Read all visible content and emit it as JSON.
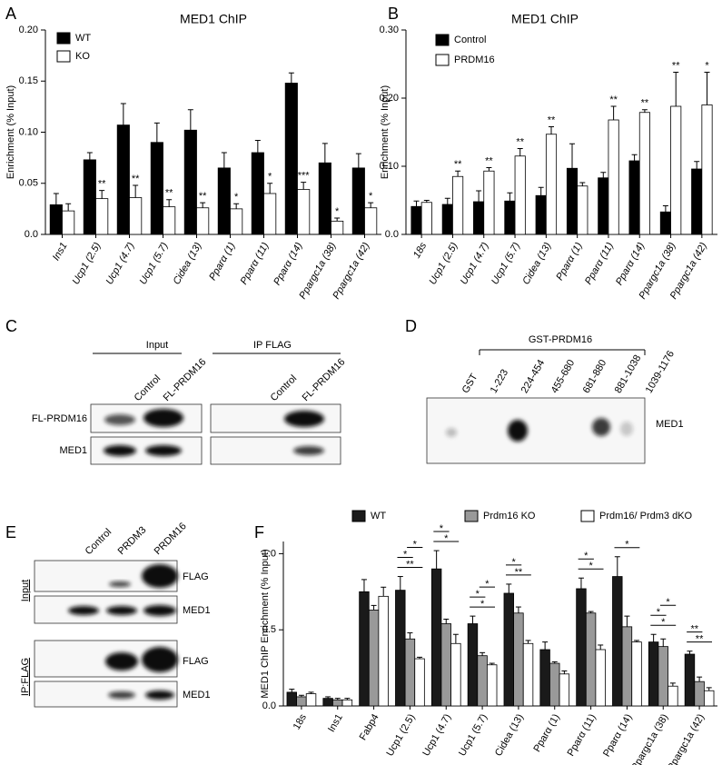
{
  "panel_labels": [
    "A",
    "B",
    "C",
    "D",
    "E",
    "F"
  ],
  "chart_data": [
    {
      "type": "bar",
      "title": "MED1 ChIP",
      "y_label": "Enrichment (% Input)",
      "categories": [
        "Ins1",
        "Ucp1 (2.5)",
        "Ucp1 (4.7)",
        "Ucp1 (5.7)",
        "Cidea (13)",
        "Pparα (1)",
        "Pparα (11)",
        "Pparα (14)",
        "Ppargc1a (38)",
        "Ppargc1a (42)"
      ],
      "series": [
        {
          "name": "WT",
          "color": "#000000",
          "values": [
            0.029,
            0.073,
            0.107,
            0.09,
            0.102,
            0.065,
            0.08,
            0.148,
            0.07,
            0.065
          ],
          "errors": [
            0.011,
            0.007,
            0.021,
            0.019,
            0.02,
            0.015,
            0.012,
            0.01,
            0.019,
            0.014
          ]
        },
        {
          "name": "KO",
          "color": "#ffffff",
          "values": [
            0.023,
            0.035,
            0.036,
            0.027,
            0.026,
            0.025,
            0.04,
            0.044,
            0.013,
            0.026
          ],
          "errors": [
            0.007,
            0.008,
            0.012,
            0.007,
            0.005,
            0.005,
            0.01,
            0.007,
            0.003,
            0.005
          ]
        }
      ],
      "significance": [
        null,
        "**",
        "**",
        "**",
        "**",
        "*",
        "*",
        "***",
        "*",
        "*"
      ],
      "ylim": [
        0,
        0.2
      ],
      "yticks": [
        {
          "value": 0,
          "label": "0.0"
        },
        0.05,
        {
          "value": 0.1,
          "label": "0.10"
        },
        0.15,
        {
          "value": 0.2,
          "label": "0.20"
        }
      ],
      "legend": "upper left"
    },
    {
      "type": "bar",
      "title": "MED1 ChIP",
      "y_label": "Enrichment (% Input)",
      "categories": [
        "18s",
        "Ucp1 (2.5)",
        "Ucp1 (4.7)",
        "Ucp1 (5.7)",
        "Cidea (13)",
        "Pparα (1)",
        "Pparα (11)",
        "Pparα (14)",
        "Ppargc1a (38)",
        "Ppargc1a (42)"
      ],
      "series": [
        {
          "name": "Control",
          "color": "#000000",
          "values": [
            0.041,
            0.044,
            0.048,
            0.049,
            0.057,
            0.097,
            0.083,
            0.108,
            0.033,
            0.096
          ],
          "errors": [
            0.008,
            0.009,
            0.016,
            0.012,
            0.012,
            0.036,
            0.008,
            0.009,
            0.009,
            0.011
          ]
        },
        {
          "name": "PRDM16",
          "color": "#ffffff",
          "values": [
            0.047,
            0.085,
            0.093,
            0.115,
            0.147,
            0.071,
            0.168,
            0.179,
            0.188,
            0.19
          ],
          "errors": [
            0.003,
            0.008,
            0.005,
            0.011,
            0.011,
            0.005,
            0.02,
            0.004,
            0.05,
            0.048
          ]
        }
      ],
      "significance": [
        null,
        "**",
        "**",
        "**",
        "**",
        null,
        "**",
        "**",
        "**",
        "*"
      ],
      "ylim": [
        0,
        0.3
      ],
      "yticks": [
        {
          "value": 0,
          "label": "0.0"
        },
        {
          "value": 0.1,
          "label": "0.10"
        },
        {
          "value": 0.2,
          "label": "0.20"
        },
        {
          "value": 0.3,
          "label": "0.30"
        }
      ],
      "legend": "upper left"
    },
    {
      "type": "bar",
      "y_label": "MED1 ChIP Enrichment (% Input)",
      "categories": [
        "18s",
        "Ins1",
        "Fabp4",
        "Ucp1 (2.5)",
        "Ucp1 (4.7)",
        "Ucp1 (5.7)",
        "Cidea (13)",
        "Pparα (1)",
        "Pparα (11)",
        "Pparα (14)",
        "Ppargc1a (38)",
        "Ppargc1a (42)"
      ],
      "series": [
        {
          "name": "WT",
          "color": "#1a1a1a",
          "values": [
            0.09,
            0.05,
            0.75,
            0.76,
            0.9,
            0.54,
            0.74,
            0.37,
            0.77,
            0.85,
            0.42,
            0.34
          ],
          "errors": [
            0.02,
            0.01,
            0.08,
            0.09,
            0.12,
            0.05,
            0.06,
            0.05,
            0.07,
            0.13,
            0.05,
            0.02
          ]
        },
        {
          "name": "Prdm16 KO",
          "color": "#999999",
          "values": [
            0.06,
            0.04,
            0.63,
            0.44,
            0.54,
            0.33,
            0.61,
            0.28,
            0.61,
            0.52,
            0.39,
            0.16
          ],
          "errors": [
            0.01,
            0.01,
            0.03,
            0.04,
            0.03,
            0.02,
            0.04,
            0.01,
            0.01,
            0.07,
            0.05,
            0.03
          ]
        },
        {
          "name": "Prdm16/ Prdm3 dKO",
          "color": "#ffffff",
          "values": [
            0.08,
            0.04,
            0.72,
            0.31,
            0.41,
            0.27,
            0.41,
            0.21,
            0.37,
            0.42,
            0.13,
            0.1
          ],
          "errors": [
            0.01,
            0.01,
            0.06,
            0.01,
            0.06,
            0.01,
            0.02,
            0.02,
            0.03,
            0.01,
            0.02,
            0.02
          ]
        }
      ],
      "brackets": [
        [],
        [],
        [],
        [
          "**",
          "*",
          "*"
        ],
        [
          "*",
          "*"
        ],
        [
          "*",
          "*",
          "*"
        ],
        [
          "**",
          "*"
        ],
        [],
        [
          "*",
          "*"
        ],
        [
          "*"
        ],
        [
          "*",
          "*",
          "*"
        ],
        [
          "**",
          "**"
        ]
      ],
      "ylim": [
        0,
        1.08
      ],
      "yticks": [
        {
          "value": 0,
          "label": "0.0"
        },
        0.5,
        {
          "value": 1,
          "label": "1.0"
        }
      ],
      "legend": "top"
    }
  ],
  "blots": {
    "C": {
      "groups": [
        {
          "title": "Input",
          "lanes": [
            "Control",
            "FL-PRDM16"
          ]
        },
        {
          "title": "IP FLAG",
          "lanes": [
            "Control",
            "FL-PRDM16"
          ]
        }
      ],
      "rows": [
        "FL-PRDM16",
        "MED1"
      ]
    },
    "D": {
      "group": "GST-PRDM16",
      "lanes": [
        "GST",
        "1-223",
        "224-454",
        "455-680",
        "681-880",
        "881-1038",
        "1039-1176"
      ],
      "band": "MED1"
    },
    "E": {
      "lanes": [
        "Control",
        "PRDM3",
        "PRDM16"
      ],
      "sections": [
        {
          "title": "Input",
          "rows": [
            "FLAG",
            "MED1"
          ]
        },
        {
          "title": "IP:FLAG",
          "rows": [
            "FLAG",
            "MED1"
          ]
        }
      ]
    }
  }
}
